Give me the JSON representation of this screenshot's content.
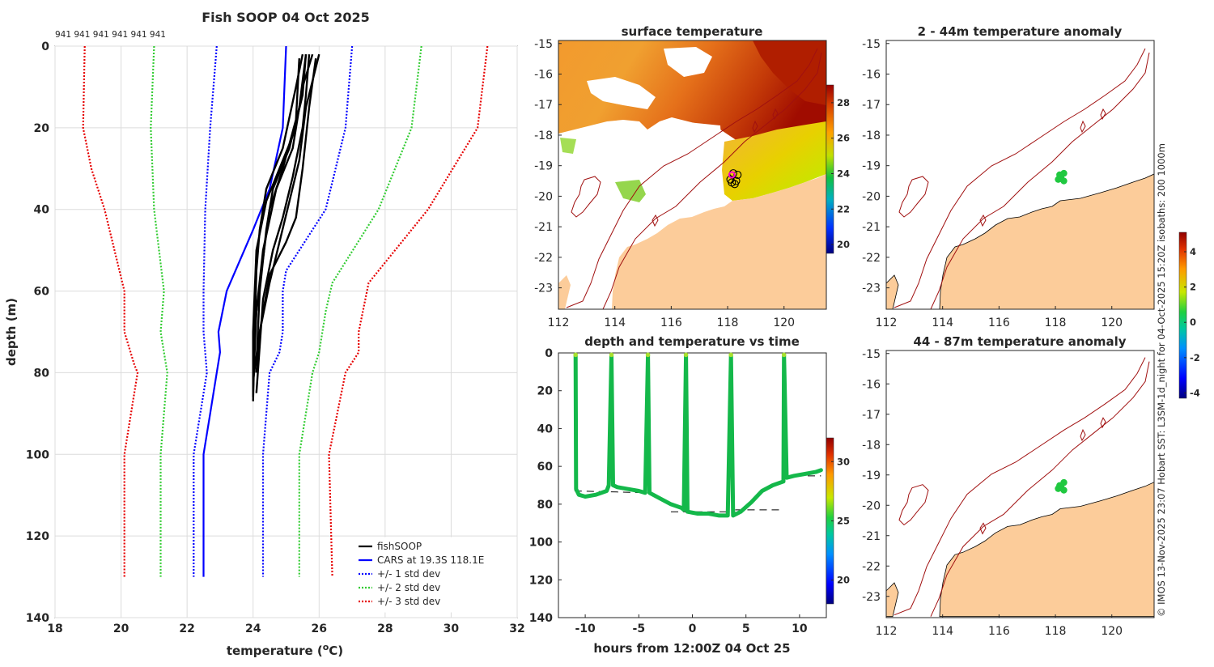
{
  "header": {
    "title": "Fish SOOP 04 Oct 2025",
    "deployment_ids": "941 941 941 941 941 941"
  },
  "credit": "© IMOS 13-Nov-2025 23:07 Hobart SST: L3SM-1d_night for 04-Oct-2025 15:20Z isobaths: 200  1000m",
  "colors": {
    "fishsoop": "#000000",
    "cars": "#0000ff",
    "std1": "#0000ff",
    "std2": "#33cc33",
    "std3": "#e60000",
    "land": "#fccc9a",
    "isobath": "#a01010"
  },
  "chart_data": [
    {
      "id": "profile",
      "type": "line",
      "title": "",
      "xlabel": "temperature (°C)",
      "ylabel": "depth (m)",
      "xlim": [
        18,
        32
      ],
      "ylim": [
        0,
        140
      ],
      "y_reversed": true,
      "grid": true,
      "xticks": [
        18,
        20,
        22,
        24,
        26,
        28,
        30,
        32
      ],
      "yticks": [
        0,
        20,
        40,
        60,
        80,
        100,
        120,
        140
      ],
      "legend": [
        "fishSOOP",
        "CARS at 19.3S 118.1E",
        "+/- 1 std dev",
        "+/- 2 std dev",
        "+/- 3 std dev"
      ],
      "legend_position": "bottom-right",
      "series": [
        {
          "name": "CARS at 19.3S 118.1E",
          "style": "solid",
          "points": [
            [
              25.0,
              0
            ],
            [
              24.9,
              20
            ],
            [
              24.5,
              35
            ],
            [
              24.0,
              45
            ],
            [
              23.2,
              60
            ],
            [
              22.95,
              70
            ],
            [
              23.0,
              75
            ],
            [
              22.9,
              80
            ],
            [
              22.7,
              90
            ],
            [
              22.5,
              100
            ],
            [
              22.5,
              130
            ]
          ]
        },
        {
          "name": "CARS -1 std",
          "style": "dotted",
          "color_key": "std1",
          "points": [
            [
              22.9,
              0
            ],
            [
              22.7,
              20
            ],
            [
              22.55,
              40
            ],
            [
              22.5,
              60
            ],
            [
              22.5,
              70
            ],
            [
              22.6,
              80
            ],
            [
              22.2,
              100
            ],
            [
              22.2,
              130
            ]
          ]
        },
        {
          "name": "CARS +1 std",
          "style": "dotted",
          "color_key": "std1",
          "points": [
            [
              27.0,
              0
            ],
            [
              26.8,
              20
            ],
            [
              26.2,
              40
            ],
            [
              25.0,
              55
            ],
            [
              24.9,
              60
            ],
            [
              24.9,
              70
            ],
            [
              24.8,
              75
            ],
            [
              24.5,
              80
            ],
            [
              24.3,
              100
            ],
            [
              24.3,
              130
            ]
          ]
        },
        {
          "name": "CARS -2 std",
          "style": "dotted",
          "color_key": "std2",
          "points": [
            [
              21.0,
              0
            ],
            [
              20.9,
              20
            ],
            [
              21.0,
              40
            ],
            [
              21.3,
              60
            ],
            [
              21.2,
              70
            ],
            [
              21.4,
              80
            ],
            [
              21.2,
              100
            ],
            [
              21.2,
              130
            ]
          ]
        },
        {
          "name": "CARS +2 std",
          "style": "dotted",
          "color_key": "std2",
          "points": [
            [
              29.1,
              0
            ],
            [
              28.8,
              20
            ],
            [
              27.8,
              40
            ],
            [
              26.4,
              58
            ],
            [
              26.2,
              65
            ],
            [
              26.0,
              75
            ],
            [
              25.8,
              80
            ],
            [
              25.4,
              100
            ],
            [
              25.4,
              130
            ]
          ]
        },
        {
          "name": "CARS -3 std",
          "style": "dotted",
          "color_key": "std3",
          "points": [
            [
              18.9,
              0
            ],
            [
              18.85,
              20
            ],
            [
              19.1,
              30
            ],
            [
              19.5,
              40
            ],
            [
              20.1,
              60
            ],
            [
              20.1,
              70
            ],
            [
              20.4,
              78
            ],
            [
              20.5,
              80
            ],
            [
              20.1,
              100
            ],
            [
              20.1,
              130
            ]
          ]
        },
        {
          "name": "CARS +3 std",
          "style": "dotted",
          "color_key": "std3",
          "points": [
            [
              31.1,
              0
            ],
            [
              30.8,
              20
            ],
            [
              29.3,
              40
            ],
            [
              27.5,
              58
            ],
            [
              27.2,
              70
            ],
            [
              27.2,
              75
            ],
            [
              26.8,
              80
            ],
            [
              26.3,
              100
            ],
            [
              26.4,
              130
            ]
          ]
        },
        {
          "name": "fishSOOP 1",
          "style": "solid",
          "width": 2.4,
          "points": [
            [
              25.8,
              2
            ],
            [
              25.5,
              10
            ],
            [
              25.2,
              25
            ],
            [
              24.7,
              35
            ],
            [
              24.3,
              50
            ],
            [
              24.1,
              65
            ],
            [
              24.0,
              78
            ]
          ]
        },
        {
          "name": "fishSOOP 2",
          "style": "solid",
          "width": 2.4,
          "points": [
            [
              25.9,
              3
            ],
            [
              25.7,
              15
            ],
            [
              25.5,
              30
            ],
            [
              25.3,
              42
            ],
            [
              25.0,
              48
            ],
            [
              24.5,
              56
            ],
            [
              24.2,
              70
            ],
            [
              24.1,
              80
            ]
          ]
        },
        {
          "name": "fishSOOP 3",
          "style": "solid",
          "width": 2.4,
          "points": [
            [
              25.6,
              2
            ],
            [
              25.4,
              15
            ],
            [
              25.1,
              25
            ],
            [
              24.6,
              35
            ],
            [
              24.4,
              45
            ],
            [
              24.2,
              60
            ],
            [
              24.1,
              78
            ]
          ]
        },
        {
          "name": "fishSOOP 4",
          "style": "solid",
          "width": 2.4,
          "points": [
            [
              25.7,
              2
            ],
            [
              25.6,
              12
            ],
            [
              25.5,
              20
            ],
            [
              25.2,
              32
            ],
            [
              24.9,
              42
            ],
            [
              24.6,
              50
            ],
            [
              24.3,
              62
            ],
            [
              24.1,
              85
            ]
          ]
        },
        {
          "name": "fishSOOP 5",
          "style": "solid",
          "width": 2.4,
          "points": [
            [
              25.5,
              2
            ],
            [
              25.3,
              10
            ],
            [
              24.9,
              25
            ],
            [
              24.4,
              35
            ],
            [
              24.2,
              45
            ],
            [
              24.1,
              55
            ],
            [
              24.0,
              87
            ]
          ]
        },
        {
          "name": "fishSOOP 6",
          "style": "solid",
          "width": 2.4,
          "points": [
            [
              26.0,
              2
            ],
            [
              25.6,
              15
            ],
            [
              25.4,
              28
            ],
            [
              25.1,
              38
            ],
            [
              24.8,
              48
            ],
            [
              24.5,
              58
            ],
            [
              24.2,
              70
            ],
            [
              24.0,
              82
            ]
          ]
        },
        {
          "name": "fishSOOP 7",
          "style": "solid",
          "width": 2.4,
          "points": [
            [
              25.4,
              3
            ],
            [
              25.3,
              18
            ],
            [
              24.9,
              30
            ],
            [
              24.5,
              40
            ],
            [
              24.3,
              52
            ],
            [
              24.1,
              65
            ],
            [
              24.0,
              84
            ]
          ]
        },
        {
          "name": "fishSOOP 8",
          "style": "solid",
          "width": 2.4,
          "points": [
            [
              25.6,
              2
            ],
            [
              25.5,
              12
            ],
            [
              25.2,
              22
            ],
            [
              24.8,
              30
            ],
            [
              24.4,
              38
            ],
            [
              24.1,
              50
            ],
            [
              24.0,
              70
            ],
            [
              24.0,
              86
            ]
          ]
        }
      ]
    },
    {
      "id": "sst_map",
      "type": "heatmap",
      "title": "surface temperature",
      "xlim": [
        112,
        121.5
      ],
      "ylim": [
        -23.7,
        -14.9
      ],
      "xticks": [
        112,
        114,
        116,
        118,
        120
      ],
      "yticks": [
        -15,
        -16,
        -17,
        -18,
        -19,
        -20,
        -21,
        -22,
        -23
      ],
      "colorbar": {
        "min": 19.5,
        "max": 29,
        "ticks": [
          20,
          22,
          24,
          26,
          28
        ]
      },
      "deployment_markers": [
        [
          118.2,
          -19.25
        ],
        [
          118.35,
          -19.3
        ],
        [
          118.1,
          -19.45
        ],
        [
          118.3,
          -19.5
        ],
        [
          118.15,
          -19.55
        ],
        [
          118.25,
          -19.6
        ]
      ],
      "highlight_marker": [
        118.15,
        -19.3
      ]
    },
    {
      "id": "depth_time",
      "type": "scatter",
      "title": "depth and temperature vs time",
      "xlabel": "hours from 12:00Z 04 Oct 25",
      "xlim": [
        -12.5,
        12.5
      ],
      "ylim": [
        0,
        140
      ],
      "y_reversed": true,
      "xticks": [
        -10,
        -5,
        0,
        5,
        10
      ],
      "yticks": [
        0,
        20,
        40,
        60,
        80,
        100,
        120,
        140
      ],
      "colorbar": {
        "min": 18,
        "max": 32,
        "ticks": [
          20,
          25,
          30
        ]
      },
      "points": [
        [
          -10.9,
          1
        ],
        [
          -10.85,
          72
        ],
        [
          -10.6,
          75
        ],
        [
          -10.0,
          76
        ],
        [
          -9.0,
          75
        ],
        [
          -8.0,
          73
        ],
        [
          -7.8,
          70
        ],
        [
          -7.55,
          1
        ],
        [
          -7.4,
          70
        ],
        [
          -7.0,
          71
        ],
        [
          -6.0,
          72
        ],
        [
          -5.0,
          73
        ],
        [
          -4.4,
          74
        ],
        [
          -4.15,
          1
        ],
        [
          -4.0,
          74
        ],
        [
          -3.0,
          77
        ],
        [
          -2.0,
          80
        ],
        [
          -1.0,
          82
        ],
        [
          -0.8,
          83
        ],
        [
          -0.6,
          1
        ],
        [
          -0.45,
          84
        ],
        [
          0.5,
          85
        ],
        [
          1.5,
          85
        ],
        [
          2.5,
          86
        ],
        [
          3.3,
          86
        ],
        [
          3.6,
          1
        ],
        [
          3.8,
          86
        ],
        [
          4.5,
          84
        ],
        [
          5.5,
          79
        ],
        [
          6.5,
          73
        ],
        [
          7.5,
          70
        ],
        [
          8.5,
          68
        ],
        [
          8.55,
          1
        ],
        [
          8.8,
          66
        ],
        [
          9.5,
          65
        ],
        [
          10.5,
          64
        ],
        [
          11.5,
          63
        ],
        [
          12.0,
          62
        ]
      ],
      "seafloor_segments": [
        [
          [
            -11.0,
            73
          ],
          [
            -3.8,
            74
          ]
        ],
        [
          [
            -2.0,
            84
          ],
          [
            4.0,
            84
          ]
        ],
        [
          [
            4.0,
            83
          ],
          [
            8.5,
            83
          ]
        ],
        [
          [
            8.5,
            65
          ],
          [
            12.0,
            65
          ]
        ]
      ]
    },
    {
      "id": "anomaly_2_44",
      "type": "heatmap",
      "title": "2 - 44m temperature anomaly",
      "xlim": [
        112,
        121.5
      ],
      "ylim": [
        -23.7,
        -14.9
      ],
      "xticks": [
        112,
        114,
        116,
        118,
        120
      ],
      "yticks": [
        -15,
        -16,
        -17,
        -18,
        -19,
        -20,
        -21,
        -22,
        -23
      ],
      "anomaly_points": [
        [
          118.15,
          -19.3
        ],
        [
          118.3,
          -19.25
        ],
        [
          118.1,
          -19.45
        ],
        [
          118.3,
          -19.5
        ],
        [
          118.2,
          -19.4
        ]
      ]
    },
    {
      "id": "anomaly_44_87",
      "type": "heatmap",
      "title": "44 - 87m temperature anomaly",
      "xlim": [
        112,
        121.5
      ],
      "ylim": [
        -23.7,
        -14.9
      ],
      "xticks": [
        112,
        114,
        116,
        118,
        120
      ],
      "yticks": [
        -15,
        -16,
        -17,
        -18,
        -19,
        -20,
        -21,
        -22,
        -23
      ],
      "anomaly_points": [
        [
          118.15,
          -19.35
        ],
        [
          118.3,
          -19.25
        ],
        [
          118.1,
          -19.45
        ],
        [
          118.3,
          -19.5
        ],
        [
          118.2,
          -19.4
        ]
      ],
      "colorbar": {
        "min": -4.3,
        "max": 5.1,
        "ticks": [
          -4,
          -2,
          0,
          2,
          4
        ]
      }
    }
  ]
}
